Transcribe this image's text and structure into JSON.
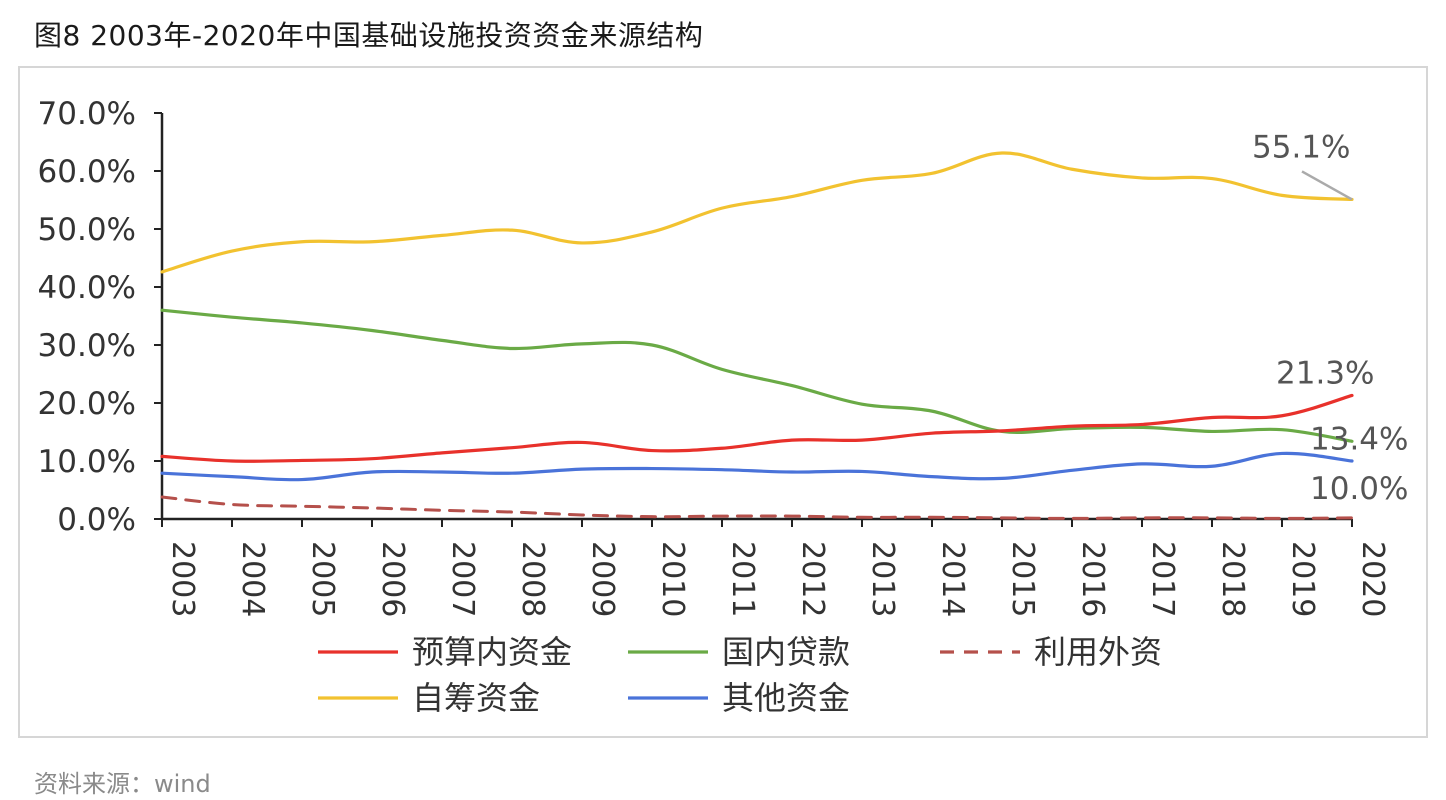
{
  "figure": {
    "title": "图8 2003年-2020年中国基础设施投资资金来源结构",
    "source": "资料来源：wind"
  },
  "chart_data": {
    "type": "line",
    "title": "",
    "xlabel": "",
    "ylabel": "",
    "ylim": [
      0,
      70
    ],
    "y_ticks": [
      "0.0%",
      "10.0%",
      "20.0%",
      "30.0%",
      "40.0%",
      "50.0%",
      "60.0%",
      "70.0%"
    ],
    "x": [
      "2003",
      "2004",
      "2005",
      "2006",
      "2007",
      "2008",
      "2009",
      "2010",
      "2011",
      "2012",
      "2013",
      "2014",
      "2015",
      "2016",
      "2017",
      "2018",
      "2019",
      "2020"
    ],
    "grid": false,
    "legend_position": "bottom",
    "series": [
      {
        "name": "预算内资金",
        "color": "#e8312b",
        "dash": false,
        "values": [
          10.8,
          10.0,
          10.1,
          10.4,
          11.4,
          12.3,
          13.2,
          11.8,
          12.2,
          13.6,
          13.6,
          14.8,
          15.2,
          16.0,
          16.3,
          17.5,
          17.8,
          21.3
        ]
      },
      {
        "name": "国内贷款",
        "color": "#6aaa46",
        "dash": false,
        "values": [
          36.0,
          34.8,
          33.8,
          32.5,
          30.8,
          29.4,
          30.2,
          30.0,
          25.8,
          23.0,
          19.8,
          18.6,
          15.1,
          15.6,
          15.8,
          15.1,
          15.4,
          13.4
        ]
      },
      {
        "name": "利用外资",
        "color": "#b5504b",
        "dash": true,
        "values": [
          3.8,
          2.5,
          2.2,
          1.9,
          1.5,
          1.2,
          0.7,
          0.4,
          0.5,
          0.5,
          0.3,
          0.3,
          0.2,
          0.1,
          0.2,
          0.2,
          0.1,
          0.2
        ]
      },
      {
        "name": "自筹资金",
        "color": "#f2c230",
        "dash": false,
        "values": [
          42.6,
          46.2,
          47.8,
          47.8,
          48.9,
          49.8,
          47.6,
          49.5,
          53.6,
          55.6,
          58.4,
          59.6,
          63.1,
          60.3,
          58.8,
          58.7,
          55.8,
          55.1
        ]
      },
      {
        "name": "其他资金",
        "color": "#4a73d9",
        "dash": false,
        "values": [
          7.9,
          7.3,
          6.8,
          8.1,
          8.1,
          7.9,
          8.6,
          8.7,
          8.5,
          8.1,
          8.2,
          7.3,
          7.0,
          8.4,
          9.5,
          9.1,
          11.3,
          10.0
        ]
      }
    ],
    "annotations": [
      {
        "text": "55.1%",
        "series": "自筹资金"
      },
      {
        "text": "21.3%",
        "series": "预算内资金"
      },
      {
        "text": "13.4%",
        "series": "国内贷款"
      },
      {
        "text": "10.0%",
        "series": "其他资金"
      }
    ],
    "legend_rows": [
      [
        "预算内资金",
        "国内贷款",
        "利用外资"
      ],
      [
        "自筹资金",
        "其他资金"
      ]
    ]
  }
}
